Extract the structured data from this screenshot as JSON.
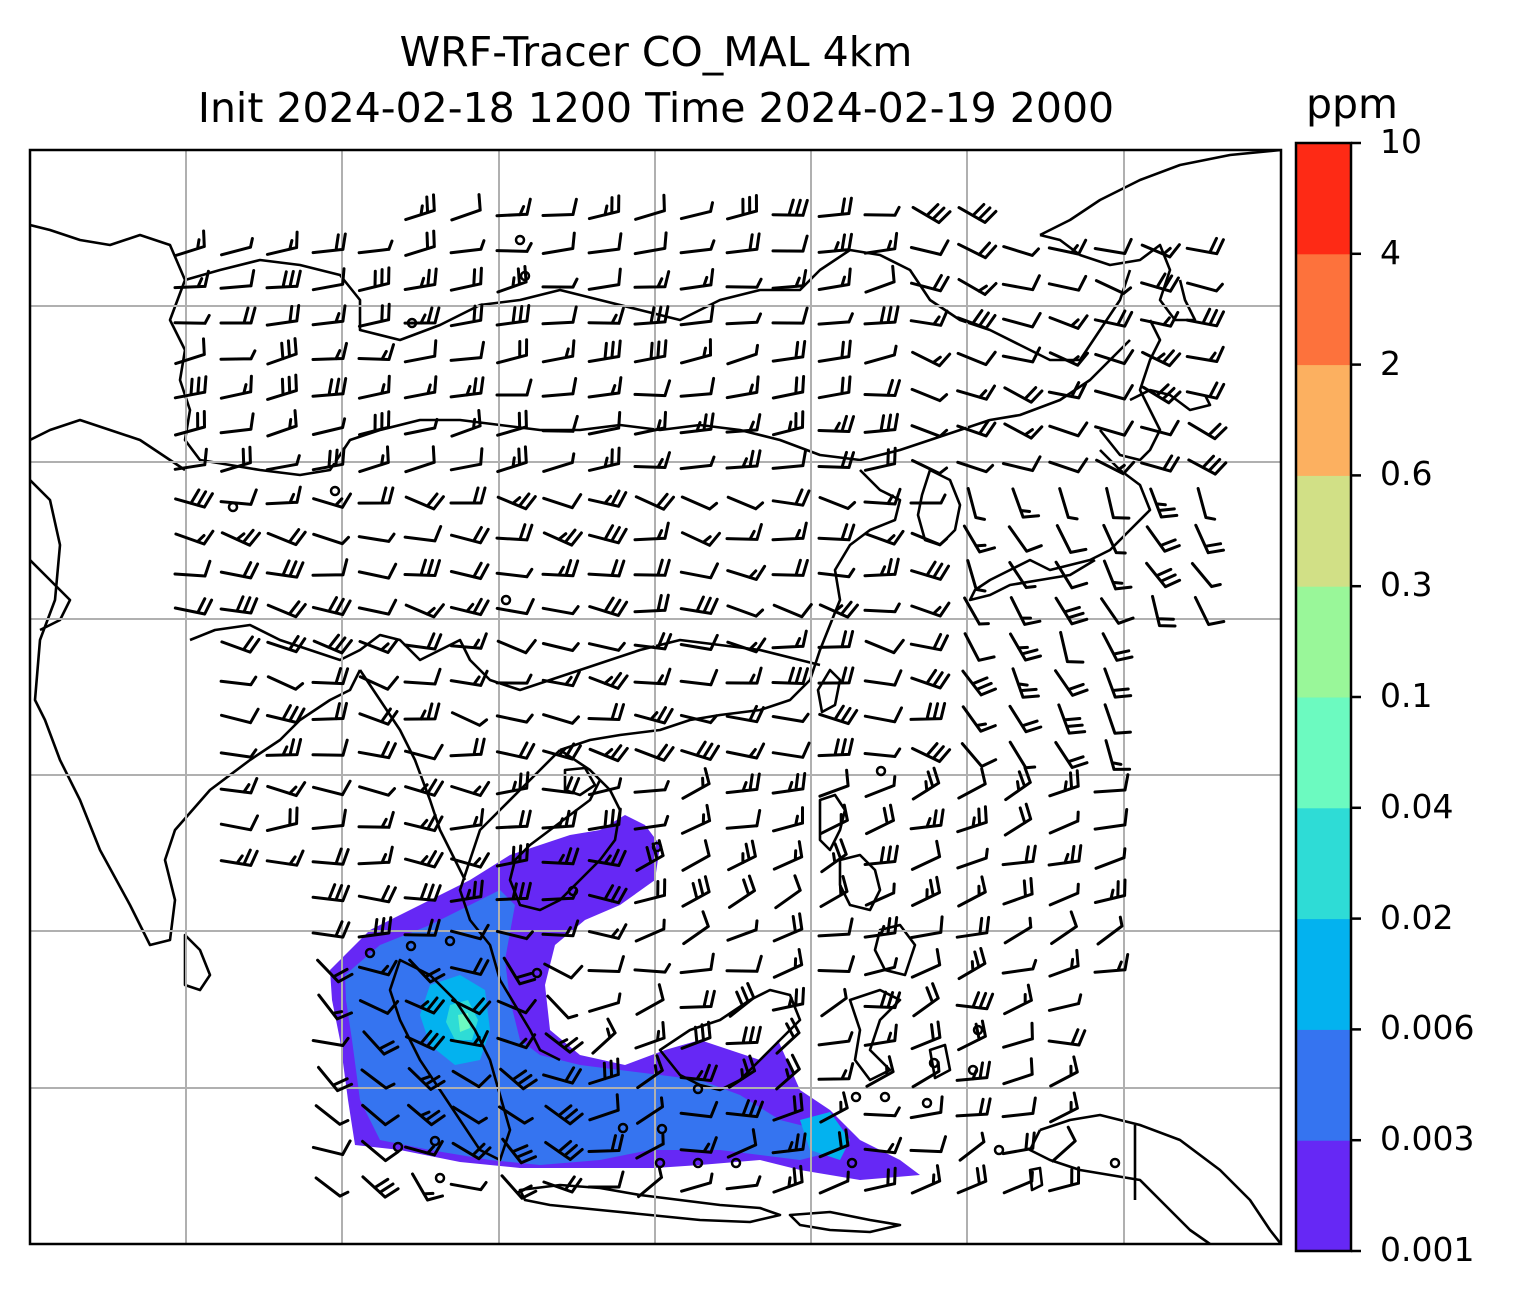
{
  "title": {
    "line1": "WRF-Tracer CO_MAL 4km",
    "line2": "Init 2024-02-18 1200 Time 2024-02-19 2000"
  },
  "colorbar": {
    "unit": "ppm",
    "tick_labels": [
      "0.001",
      "0.003",
      "0.006",
      "0.02",
      "0.04",
      "0.1",
      "0.3",
      "0.6",
      "2",
      "4",
      "10"
    ],
    "colors": [
      "#6628f5",
      "#3574f0",
      "#03b2ef",
      "#2edcd6",
      "#6cfac0",
      "#99f799",
      "#d1e086",
      "#fcb060",
      "#fd723c",
      "#fe2a15"
    ]
  },
  "map": {
    "layers": [
      "coastlines",
      "country-borders",
      "gridlines",
      "wind-barbs",
      "co-tracer-fill"
    ],
    "tracer_plume_levels_present": [
      "0.001",
      "0.003",
      "0.006",
      "0.02",
      "0.04"
    ]
  }
}
